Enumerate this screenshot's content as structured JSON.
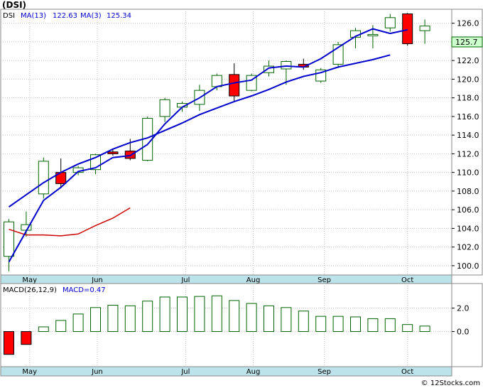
{
  "title": "(DSI)",
  "price_legend": {
    "symbol": "DSI",
    "ma13_label": "MA(13)",
    "ma13_value": "122.63",
    "ma3_label": "MA(3)",
    "ma3_value": "125.34"
  },
  "last_price": "125.7",
  "macd_legend": {
    "label": "MACD(26,12,9)",
    "value_label": "MACD=0.47"
  },
  "month_labels": [
    "May",
    "Jun",
    "Jul",
    "Aug",
    "Sep",
    "Oct"
  ],
  "footer": "© 12Stocks.com",
  "colors": {
    "up_candle_fill": "#ffffff",
    "candle_outline": "#006400",
    "down_candle_fill": "#ff0000",
    "ma13_line": "#0000cc",
    "ma3_line": "#cc0000",
    "axis_band": "#bde3ea",
    "grid": "#c0c0c0",
    "last_price_box": "#ccffcc"
  },
  "chart_data": [
    {
      "type": "candlestick",
      "ylim": [
        99,
        127.5
      ],
      "yticks": [
        100,
        102,
        104,
        106,
        108,
        110,
        112,
        114,
        116,
        118,
        120,
        122,
        124,
        126
      ],
      "ytick_labels": [
        "100.0",
        "102.0",
        "104.0",
        "106.0",
        "108.0",
        "110.0",
        "112.0",
        "114.0",
        "116.0",
        "118.0",
        "120.0",
        "122.0",
        "124.0",
        "126.0"
      ],
      "month_positions": [
        1.2,
        5.1,
        10.2,
        14.1,
        18.2,
        23.0
      ],
      "candles": [
        {
          "open": 101.0,
          "high": 105.0,
          "low": 99.4,
          "close": 104.7
        },
        {
          "open": 103.8,
          "high": 105.8,
          "low": 103.1,
          "close": 104.4
        },
        {
          "open": 107.7,
          "high": 111.6,
          "low": 107.2,
          "close": 111.2
        },
        {
          "open": 110.0,
          "high": 111.5,
          "low": 108.3,
          "close": 108.8
        },
        {
          "open": 110.0,
          "high": 110.7,
          "low": 109.7,
          "close": 110.5
        },
        {
          "open": 110.3,
          "high": 112.0,
          "low": 109.8,
          "close": 111.9
        },
        {
          "open": 112.2,
          "high": 112.5,
          "low": 111.8,
          "close": 112.0
        },
        {
          "open": 112.3,
          "high": 113.6,
          "low": 111.3,
          "close": 111.5
        },
        {
          "open": 111.3,
          "high": 116.0,
          "low": 111.2,
          "close": 115.8
        },
        {
          "open": 116.0,
          "high": 118.0,
          "low": 115.4,
          "close": 117.8
        },
        {
          "open": 117.0,
          "high": 117.6,
          "low": 116.5,
          "close": 117.4
        },
        {
          "open": 117.3,
          "high": 119.4,
          "low": 116.6,
          "close": 118.8
        },
        {
          "open": 119.2,
          "high": 120.6,
          "low": 118.8,
          "close": 120.4
        },
        {
          "open": 120.5,
          "high": 121.7,
          "low": 117.6,
          "close": 118.2
        },
        {
          "open": 118.8,
          "high": 120.6,
          "low": 118.7,
          "close": 120.4
        },
        {
          "open": 120.7,
          "high": 122.0,
          "low": 120.3,
          "close": 121.4
        },
        {
          "open": 121.1,
          "high": 122.0,
          "low": 119.4,
          "close": 121.9
        },
        {
          "open": 121.6,
          "high": 122.2,
          "low": 121.0,
          "close": 121.3
        },
        {
          "open": 119.8,
          "high": 121.2,
          "low": 119.6,
          "close": 121.0
        },
        {
          "open": 121.6,
          "high": 124.0,
          "low": 121.2,
          "close": 123.7
        },
        {
          "open": 124.5,
          "high": 125.5,
          "low": 123.3,
          "close": 125.2
        },
        {
          "open": 124.7,
          "high": 125.8,
          "low": 123.3,
          "close": 124.8
        },
        {
          "open": 125.5,
          "high": 127.0,
          "low": 125.1,
          "close": 126.6
        },
        {
          "open": 127.0,
          "high": 127.1,
          "low": 123.6,
          "close": 123.8
        },
        {
          "open": 125.2,
          "high": 126.4,
          "low": 123.8,
          "close": 125.7
        }
      ],
      "ma13": [
        {
          "x": 10.0,
          "y": 106.3
        },
        {
          "x": 11.0,
          "y": 107.6
        },
        {
          "x": 12.0,
          "y": 108.9
        },
        {
          "x": 13.0,
          "y": 110.0
        },
        {
          "x": 14.0,
          "y": 110.9
        },
        {
          "x": 15.0,
          "y": 111.6
        },
        {
          "x": 16.0,
          "y": 112.5
        },
        {
          "x": 17.0,
          "y": 113.2
        },
        {
          "x": 18.0,
          "y": 113.7
        },
        {
          "x": 19.0,
          "y": 114.5
        },
        {
          "x": 20.0,
          "y": 115.3
        },
        {
          "x": 21.0,
          "y": 116.2
        },
        {
          "x": 22.0,
          "y": 116.9
        },
        {
          "x": 23.0,
          "y": 117.6
        },
        {
          "x": 24.0,
          "y": 118.2
        },
        {
          "x": 25.0,
          "y": 118.9
        },
        {
          "x": 26.0,
          "y": 119.7
        },
        {
          "x": 27.0,
          "y": 120.3
        },
        {
          "x": 28.0,
          "y": 120.7
        },
        {
          "x": 29.0,
          "y": 121.3
        },
        {
          "x": 30.0,
          "y": 121.7
        },
        {
          "x": 31.0,
          "y": 122.1
        },
        {
          "x": 32.0,
          "y": 122.6
        }
      ],
      "ma3": [
        {
          "x": 0.0,
          "y": 103.9
        },
        {
          "x": 1.0,
          "y": 103.3
        },
        {
          "x": 2.0,
          "y": 103.3
        },
        {
          "x": 3.0,
          "y": 103.2
        },
        {
          "x": 4.0,
          "y": 103.4
        },
        {
          "x": 5.0,
          "y": 104.3
        },
        {
          "x": 6.0,
          "y": 105.1
        },
        {
          "x": 7.0,
          "y": 106.2
        }
      ],
      "ma3_recent": [
        {
          "x": 0.0,
          "y": 100.4
        },
        {
          "x": 1.0,
          "y": 103.7
        },
        {
          "x": 2.0,
          "y": 107.0
        },
        {
          "x": 3.0,
          "y": 108.4
        },
        {
          "x": 4.0,
          "y": 110.1
        },
        {
          "x": 5.0,
          "y": 110.5
        },
        {
          "x": 6.0,
          "y": 111.6
        },
        {
          "x": 7.0,
          "y": 111.8
        },
        {
          "x": 8.0,
          "y": 113.0
        },
        {
          "x": 9.0,
          "y": 115.2
        },
        {
          "x": 10.0,
          "y": 117.0
        },
        {
          "x": 11.0,
          "y": 118.0
        },
        {
          "x": 12.0,
          "y": 119.2
        },
        {
          "x": 13.0,
          "y": 119.6
        },
        {
          "x": 14.0,
          "y": 119.9
        },
        {
          "x": 15.0,
          "y": 121.2
        },
        {
          "x": 16.0,
          "y": 121.4
        },
        {
          "x": 17.0,
          "y": 121.3
        },
        {
          "x": 18.0,
          "y": 122.2
        },
        {
          "x": 19.0,
          "y": 123.4
        },
        {
          "x": 20.0,
          "y": 124.6
        },
        {
          "x": 21.0,
          "y": 125.4
        },
        {
          "x": 22.0,
          "y": 124.9
        },
        {
          "x": 23.0,
          "y": 125.3
        }
      ]
    },
    {
      "type": "bar",
      "ylim": [
        -3.0,
        4.1
      ],
      "yticks": [
        0,
        2
      ],
      "ytick_labels": [
        "0.0",
        "2.0"
      ],
      "values": [
        -1.95,
        -1.1,
        0.4,
        0.95,
        1.5,
        2.05,
        2.25,
        2.2,
        2.6,
        2.95,
        2.95,
        3.0,
        3.05,
        2.65,
        2.4,
        2.2,
        2.05,
        1.75,
        1.3,
        1.3,
        1.25,
        1.1,
        1.1,
        0.6,
        0.47
      ]
    }
  ]
}
